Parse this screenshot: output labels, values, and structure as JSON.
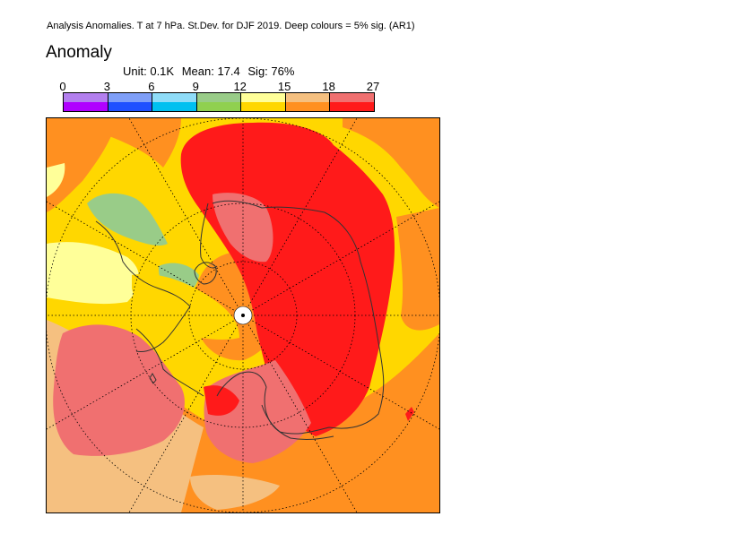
{
  "header": {
    "title": "Analysis Anomalies. T at 7 hPa. St.Dev. for DJF 2019.  Deep colours = 5% sig. (AR1)"
  },
  "panel": {
    "title": "Anomaly",
    "unit": "Unit: 0.1K",
    "mean": "Mean: 17.4",
    "sig": "Sig: 76%"
  },
  "legend": {
    "ticks": [
      "0",
      "3",
      "6",
      "9",
      "12",
      "15",
      "18",
      "27"
    ],
    "bins": [
      {
        "light": "#b37fee",
        "deep": "#b000ff"
      },
      {
        "light": "#7f9ff8",
        "deep": "#1f50ff"
      },
      {
        "light": "#8fdcf8",
        "deep": "#00c0f0"
      },
      {
        "light": "#99cc88",
        "deep": "#90d050"
      },
      {
        "light": "#ffff99",
        "deep": "#ffd700"
      },
      {
        "light": "#f5c080",
        "deep": "#ff9020"
      },
      {
        "light": "#f07070",
        "deep": "#ff1a1a"
      }
    ]
  },
  "map": {
    "projection": "north-polar-stereographic",
    "colors": {
      "background": "#ffd700",
      "orange": "#ff9020",
      "light_orange": "#f5c080",
      "light_red": "#f07070",
      "red": "#ff1a1a",
      "light_green": "#99cc88",
      "light_yellow": "#ffff99",
      "coast": "#333333"
    }
  }
}
